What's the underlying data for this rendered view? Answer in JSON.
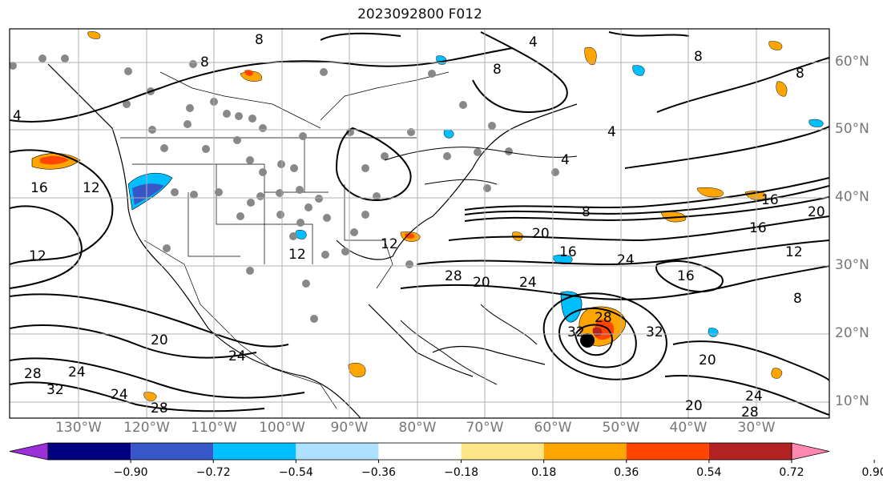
{
  "title": "2023092800 F012",
  "lon_labels": [
    "130°W",
    "120°W",
    "110°W",
    "100°W",
    "90°W",
    "80°W",
    "70°W",
    "60°W",
    "50°W",
    "40°W",
    "30°W"
  ],
  "lat_labels": [
    "60°N",
    "50°N",
    "40°N",
    "30°N",
    "20°N",
    "10°N"
  ],
  "colorbar": {
    "ticks": [
      "−0.90",
      "−0.72",
      "−0.54",
      "−0.36",
      "−0.18",
      "0.18",
      "0.36",
      "0.54",
      "0.72",
      "0.90"
    ],
    "colors": [
      "#9b30d9",
      "#000080",
      "#3757c8",
      "#00bfff",
      "#aee0ff",
      "#ffffff",
      "#ffe58a",
      "#ffa500",
      "#ff4500",
      "#b22222",
      "#ff88b0"
    ]
  },
  "contour_labels": [
    {
      "t": "8"
    },
    {
      "t": "8"
    },
    {
      "t": "4"
    },
    {
      "t": "8"
    },
    {
      "t": "8"
    },
    {
      "t": "4"
    },
    {
      "t": "4"
    },
    {
      "t": "16"
    },
    {
      "t": "12"
    },
    {
      "t": "12"
    },
    {
      "t": "8"
    },
    {
      "t": "16"
    },
    {
      "t": "12"
    },
    {
      "t": "12"
    },
    {
      "t": "20"
    },
    {
      "t": "16"
    },
    {
      "t": "24"
    },
    {
      "t": "28"
    },
    {
      "t": "20"
    },
    {
      "t": "24"
    },
    {
      "t": "28"
    },
    {
      "t": "32"
    },
    {
      "t": "32"
    },
    {
      "t": "24"
    },
    {
      "t": "28"
    },
    {
      "t": "24"
    },
    {
      "t": "20"
    },
    {
      "t": "16"
    },
    {
      "t": "20"
    },
    {
      "t": "16"
    },
    {
      "t": "12"
    },
    {
      "t": "8"
    },
    {
      "t": "24"
    },
    {
      "t": "28"
    },
    {
      "t": "20"
    },
    {
      "t": "24"
    },
    {
      "t": "32"
    },
    {
      "t": "20"
    },
    {
      "t": "8"
    },
    {
      "t": "4"
    }
  ]
}
